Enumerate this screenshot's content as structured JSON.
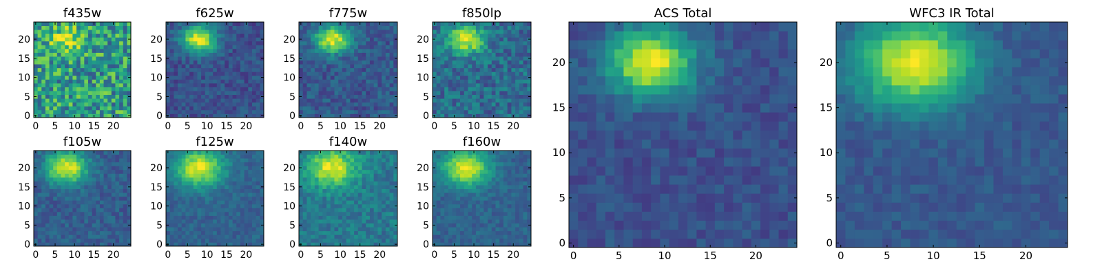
{
  "chart_data": [
    {
      "type": "heatmap",
      "title": "f435w",
      "xlim": [
        0,
        24
      ],
      "ylim": [
        0,
        24
      ],
      "xticks": [
        "0",
        "5",
        "10",
        "15",
        "20"
      ],
      "yticks": [
        "0",
        "5",
        "10",
        "15",
        "20"
      ],
      "colormap": "viridis",
      "blob": {
        "cx": 8,
        "cy": 20,
        "peak": 0.95,
        "spread": 2.2
      },
      "noise": 0.55,
      "bg": 0.55
    },
    {
      "type": "heatmap",
      "title": "f625w",
      "xlim": [
        0,
        24
      ],
      "ylim": [
        0,
        24
      ],
      "xticks": [
        "0",
        "5",
        "10",
        "15",
        "20"
      ],
      "yticks": [
        "0",
        "5",
        "10",
        "15",
        "20"
      ],
      "colormap": "viridis",
      "blob": {
        "cx": 8,
        "cy": 20,
        "peak": 0.95,
        "spread": 2.5
      },
      "noise": 0.2,
      "bg": 0.25
    },
    {
      "type": "heatmap",
      "title": "f775w",
      "xlim": [
        0,
        24
      ],
      "ylim": [
        0,
        24
      ],
      "xticks": [
        "0",
        "5",
        "10",
        "15",
        "20"
      ],
      "yticks": [
        "0",
        "5",
        "10",
        "15",
        "20"
      ],
      "colormap": "viridis",
      "blob": {
        "cx": 8,
        "cy": 20,
        "peak": 0.95,
        "spread": 2.5
      },
      "noise": 0.22,
      "bg": 0.28
    },
    {
      "type": "heatmap",
      "title": "f850lp",
      "xlim": [
        0,
        24
      ],
      "ylim": [
        0,
        24
      ],
      "xticks": [
        "0",
        "5",
        "10",
        "15",
        "20"
      ],
      "yticks": [
        "0",
        "5",
        "10",
        "15",
        "20"
      ],
      "colormap": "viridis",
      "blob": {
        "cx": 8,
        "cy": 20,
        "peak": 0.95,
        "spread": 2.6
      },
      "noise": 0.3,
      "bg": 0.35
    },
    {
      "type": "heatmap",
      "title": "f105w",
      "xlim": [
        0,
        24
      ],
      "ylim": [
        0,
        24
      ],
      "xticks": [
        "0",
        "5",
        "10",
        "15",
        "20"
      ],
      "yticks": [
        "0",
        "5",
        "10",
        "15",
        "20"
      ],
      "colormap": "viridis",
      "blob": {
        "cx": 8,
        "cy": 20,
        "peak": 0.95,
        "spread": 3.0
      },
      "noise": 0.18,
      "bg": 0.3
    },
    {
      "type": "heatmap",
      "title": "f125w",
      "xlim": [
        0,
        24
      ],
      "ylim": [
        0,
        24
      ],
      "xticks": [
        "0",
        "5",
        "10",
        "15",
        "20"
      ],
      "yticks": [
        "0",
        "5",
        "10",
        "15",
        "20"
      ],
      "colormap": "viridis",
      "blob": {
        "cx": 8,
        "cy": 20,
        "peak": 0.95,
        "spread": 3.4
      },
      "noise": 0.15,
      "bg": 0.32
    },
    {
      "type": "heatmap",
      "title": "f140w",
      "xlim": [
        0,
        24
      ],
      "ylim": [
        0,
        24
      ],
      "xticks": [
        "0",
        "5",
        "10",
        "15",
        "20"
      ],
      "yticks": [
        "0",
        "5",
        "10",
        "15",
        "20"
      ],
      "colormap": "viridis",
      "blob": {
        "cx": 8,
        "cy": 20,
        "peak": 0.95,
        "spread": 3.4
      },
      "noise": 0.22,
      "bg": 0.4
    },
    {
      "type": "heatmap",
      "title": "f160w",
      "xlim": [
        0,
        24
      ],
      "ylim": [
        0,
        24
      ],
      "xticks": [
        "0",
        "5",
        "10",
        "15",
        "20"
      ],
      "yticks": [
        "0",
        "5",
        "10",
        "15",
        "20"
      ],
      "colormap": "viridis",
      "blob": {
        "cx": 8,
        "cy": 20,
        "peak": 0.95,
        "spread": 3.3
      },
      "noise": 0.15,
      "bg": 0.32
    },
    {
      "type": "heatmap",
      "title": "ACS Total",
      "xlim": [
        0,
        24
      ],
      "ylim": [
        0,
        24
      ],
      "xticks": [
        "0",
        "5",
        "10",
        "15",
        "20"
      ],
      "yticks": [
        "0",
        "5",
        "10",
        "15",
        "20"
      ],
      "colormap": "viridis",
      "blob": {
        "cx": 8.5,
        "cy": 20,
        "peak": 0.97,
        "spread": 2.6
      },
      "noise": 0.15,
      "bg": 0.25
    },
    {
      "type": "heatmap",
      "title": "WFC3 IR Total",
      "xlim": [
        0,
        24
      ],
      "ylim": [
        0,
        24
      ],
      "xticks": [
        "0",
        "5",
        "10",
        "15",
        "20"
      ],
      "yticks": [
        "0",
        "5",
        "10",
        "15",
        "20"
      ],
      "colormap": "viridis",
      "blob": {
        "cx": 8,
        "cy": 20,
        "peak": 0.97,
        "spread": 3.4
      },
      "noise": 0.12,
      "bg": 0.28
    }
  ]
}
